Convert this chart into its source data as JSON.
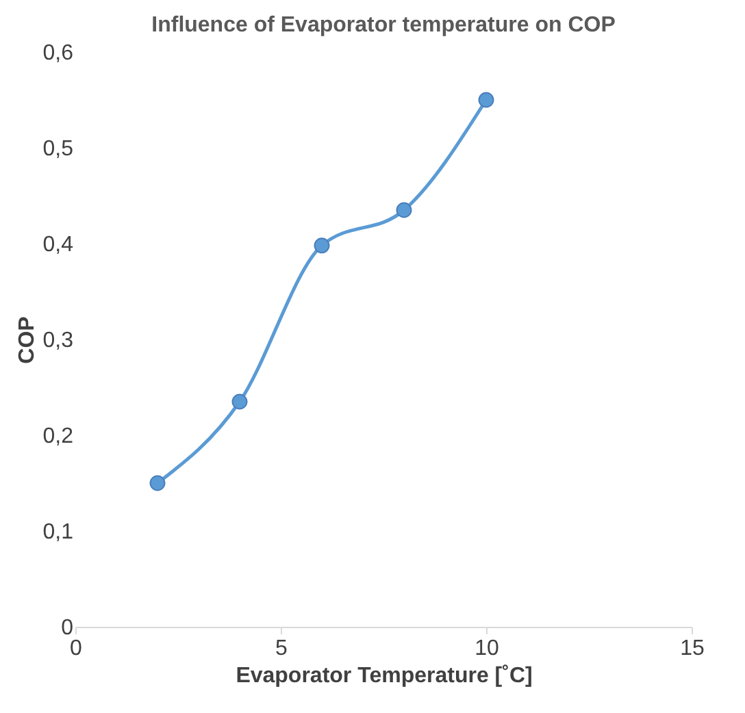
{
  "chart_data": {
    "type": "line",
    "title": "Influence of Evaporator temperature on COP",
    "xlabel": "Evaporator Temperature [˚C]",
    "ylabel": "COP",
    "x": [
      2,
      4,
      6,
      8,
      10
    ],
    "series": [
      {
        "color": "#5b9bd5",
        "values": [
          0.15,
          0.235,
          0.398,
          0.435,
          0.55
        ]
      }
    ],
    "xlim": [
      0,
      15
    ],
    "xticks": [
      0,
      5,
      10,
      15
    ],
    "ylim": [
      0,
      0.6
    ],
    "yticks": [
      0,
      {
        "value": 0.1,
        "label": "0,1"
      },
      {
        "value": 0.2,
        "label": "0,2"
      },
      {
        "value": 0.3,
        "label": "0,3"
      },
      {
        "value": 0.4,
        "label": "0,4"
      },
      {
        "value": 0.5,
        "label": "0,5"
      },
      {
        "value": 0.6,
        "label": "0,6"
      }
    ],
    "marker": "circle",
    "grid": false
  }
}
